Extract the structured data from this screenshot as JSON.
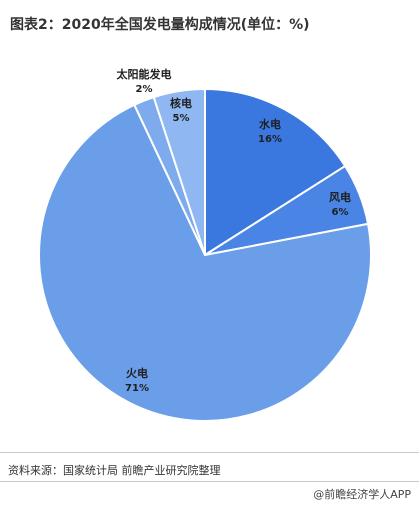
{
  "header": {
    "title": "图表2：2020年全国发电量构成情况(单位：%)"
  },
  "footer": {
    "source": "资料来源：国家统计局 前瞻产业研究院整理",
    "credit": "@前瞻经济学人APP"
  },
  "chart_data": {
    "type": "pie",
    "title": "图表2：2020年全国发电量构成情况(单位：%)",
    "start_angle_deg": 0,
    "direction": "clockwise",
    "slices": [
      {
        "label": "水电",
        "pct_label": "16%",
        "value": 16,
        "color": "#3a78e0"
      },
      {
        "label": "风电",
        "pct_label": "6%",
        "value": 6,
        "color": "#4a85e6"
      },
      {
        "label": "火电",
        "pct_label": "71%",
        "value": 71,
        "color": "#6a9ee9"
      },
      {
        "label": "太阳能发电",
        "pct_label": "2%",
        "value": 2,
        "color": "#7eaaee"
      },
      {
        "label": "核电",
        "pct_label": "5%",
        "value": 5,
        "color": "#8fb7f1"
      }
    ],
    "edge_color": "#ffffff"
  }
}
